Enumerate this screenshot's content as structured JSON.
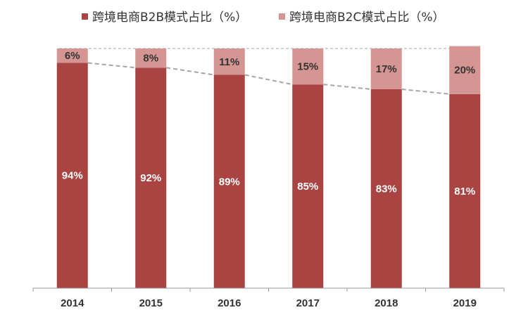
{
  "chart_data": {
    "type": "bar",
    "stacked": true,
    "categories": [
      "2014",
      "2015",
      "2016",
      "2017",
      "2018",
      "2019"
    ],
    "series": [
      {
        "name": "跨境电商B2B模式占比（%）",
        "values": [
          94,
          92,
          89,
          85,
          83,
          81
        ],
        "labels": [
          "94%",
          "92%",
          "89%",
          "85%",
          "83%",
          "81%"
        ],
        "color": "#a94442"
      },
      {
        "name": "跨境电商B2C模式占比（%）",
        "values": [
          6,
          8,
          11,
          15,
          17,
          20
        ],
        "labels": [
          "6%",
          "8%",
          "11%",
          "15%",
          "17%",
          "20%"
        ],
        "color": "#d49593"
      }
    ],
    "ylim": [
      0,
      100
    ],
    "grid": false,
    "legend_position": "top",
    "trend_line": {
      "style": "dashed",
      "color": "#a6a6a6",
      "follows": "top of B2B series"
    },
    "axis_color": "#999999"
  }
}
